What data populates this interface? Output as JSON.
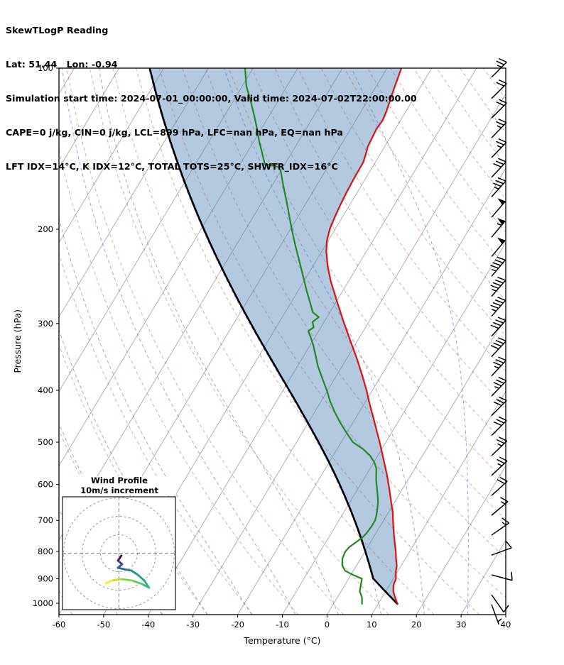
{
  "header": {
    "title": "SkewTLogP Reading",
    "location": "Lat: 51.44   Lon: -0.94",
    "times": "Simulation start time: 2024-07-01_00:00:00, Valid time: 2024-07-02T22:00:00.00",
    "indices1": "CAPE=0 j/kg, CIN=0 j/kg, LCL=899 hPa, LFC=nan hPa, EQ=nan hPa",
    "indices2": "LFT IDX=14°C, K IDX=12°C, TOTAL TOTS=25°C, SHWTR_IDX=16°C"
  },
  "chart_data": {
    "type": "skewt-logp",
    "title": "SkewTLogP Reading",
    "xlabel": "Temperature (°C)",
    "ylabel": "Pressure (hPa)",
    "xlim": [
      -60,
      40
    ],
    "p_lim": [
      100,
      1050
    ],
    "skew_slope": 0.6,
    "x_ticks": [
      -60,
      -50,
      -40,
      -30,
      -20,
      -10,
      0,
      10,
      20,
      30,
      40
    ],
    "y_ticks": [
      100,
      200,
      300,
      400,
      500,
      600,
      700,
      800,
      900,
      1000
    ],
    "background": {
      "isotherms": {
        "start": -160,
        "end": 40,
        "step": 10,
        "color": "#b0b0b0"
      },
      "dry_adiabats": {
        "theta_start_k": 233,
        "theta_end_k": 453,
        "step_k": 10,
        "color": "rgba(200,60,60,0.45)"
      },
      "moist_adiabats": {
        "t0_start": -60,
        "t0_end": 60,
        "step": 10,
        "color": "rgba(60,70,225,0.5)"
      }
    },
    "colors": {
      "temperature": "#e01010",
      "dewpoint": "#1f8b1f",
      "parcel": "#000000",
      "cin_shade": "rgba(74,127,181,0.42)",
      "barb": "#000000",
      "frame": "#000000"
    },
    "temperature_profile": [
      [
        1005,
        14.5
      ],
      [
        1000,
        14.2
      ],
      [
        975,
        12.9
      ],
      [
        950,
        11.7
      ],
      [
        925,
        10.9
      ],
      [
        900,
        10.6
      ],
      [
        875,
        9.7
      ],
      [
        850,
        9.0
      ],
      [
        825,
        7.9
      ],
      [
        800,
        6.9
      ],
      [
        775,
        5.7
      ],
      [
        750,
        4.5
      ],
      [
        725,
        3.3
      ],
      [
        700,
        2.1
      ],
      [
        675,
        0.9
      ],
      [
        650,
        -0.6
      ],
      [
        625,
        -2.1
      ],
      [
        600,
        -3.7
      ],
      [
        575,
        -5.4
      ],
      [
        550,
        -7.3
      ],
      [
        525,
        -9.3
      ],
      [
        500,
        -11.4
      ],
      [
        475,
        -13.7
      ],
      [
        450,
        -16.1
      ],
      [
        425,
        -18.7
      ],
      [
        400,
        -21.3
      ],
      [
        375,
        -24.3
      ],
      [
        350,
        -27.6
      ],
      [
        325,
        -31.3
      ],
      [
        300,
        -35.3
      ],
      [
        275,
        -39.5
      ],
      [
        250,
        -44.0
      ],
      [
        235,
        -46.6
      ],
      [
        220,
        -49.0
      ],
      [
        210,
        -50.3
      ],
      [
        200,
        -51.2
      ],
      [
        190,
        -51.7
      ],
      [
        180,
        -52.1
      ],
      [
        170,
        -52.4
      ],
      [
        160,
        -52.6
      ],
      [
        150,
        -52.7
      ],
      [
        145,
        -53.2
      ],
      [
        140,
        -53.8
      ],
      [
        130,
        -54.2
      ],
      [
        125,
        -54.0
      ],
      [
        120,
        -54.4
      ],
      [
        115,
        -55.0
      ],
      [
        110,
        -55.6
      ],
      [
        105,
        -56.2
      ],
      [
        100,
        -56.8
      ]
    ],
    "dewpoint_profile": [
      [
        1005,
        6.5
      ],
      [
        1000,
        6.3
      ],
      [
        975,
        5.5
      ],
      [
        950,
        4.2
      ],
      [
        925,
        3.6
      ],
      [
        900,
        3.0
      ],
      [
        885,
        0.5
      ],
      [
        870,
        -1.8
      ],
      [
        850,
        -3.2
      ],
      [
        825,
        -4.1
      ],
      [
        800,
        -4.4
      ],
      [
        785,
        -4.1
      ],
      [
        770,
        -3.3
      ],
      [
        755,
        -2.5
      ],
      [
        740,
        -2.1
      ],
      [
        720,
        -1.9
      ],
      [
        700,
        -1.9
      ],
      [
        685,
        -2.3
      ],
      [
        665,
        -3.0
      ],
      [
        645,
        -3.8
      ],
      [
        625,
        -4.9
      ],
      [
        605,
        -6.1
      ],
      [
        590,
        -7.0
      ],
      [
        575,
        -7.8
      ],
      [
        560,
        -8.6
      ],
      [
        545,
        -9.9
      ],
      [
        530,
        -11.7
      ],
      [
        515,
        -14.2
      ],
      [
        500,
        -17.4
      ],
      [
        480,
        -20.1
      ],
      [
        460,
        -22.8
      ],
      [
        440,
        -25.4
      ],
      [
        420,
        -27.9
      ],
      [
        400,
        -30.2
      ],
      [
        380,
        -32.8
      ],
      [
        360,
        -35.5
      ],
      [
        345,
        -37.3
      ],
      [
        330,
        -39.2
      ],
      [
        318,
        -41.0
      ],
      [
        310,
        -42.3
      ],
      [
        305,
        -41.6
      ],
      [
        298,
        -42.6
      ],
      [
        292,
        -41.8
      ],
      [
        286,
        -43.8
      ],
      [
        275,
        -45.6
      ],
      [
        260,
        -48.2
      ],
      [
        245,
        -50.8
      ],
      [
        230,
        -53.6
      ],
      [
        215,
        -56.6
      ],
      [
        200,
        -59.7
      ],
      [
        190,
        -61.8
      ],
      [
        180,
        -64.0
      ],
      [
        170,
        -66.4
      ],
      [
        162,
        -68.4
      ],
      [
        156,
        -69.9
      ],
      [
        153,
        -71.0
      ],
      [
        151,
        -74.5
      ],
      [
        148,
        -75.4
      ],
      [
        143,
        -76.9
      ],
      [
        137,
        -78.8
      ],
      [
        130,
        -80.9
      ],
      [
        122,
        -83.6
      ],
      [
        115,
        -86.2
      ],
      [
        108,
        -89.1
      ],
      [
        100,
        -91.8
      ]
    ],
    "parcel": {
      "surface_pressure": 1005,
      "surface_temp": 14.5,
      "lcl_pressure": 899
    },
    "wind_barbs": [
      [
        104,
        45,
        25
      ],
      [
        114,
        45,
        22
      ],
      [
        124,
        45,
        20
      ],
      [
        135,
        44,
        25
      ],
      [
        147,
        44,
        28
      ],
      [
        160,
        43,
        30
      ],
      [
        174,
        42,
        38
      ],
      [
        190,
        41,
        50
      ],
      [
        207,
        40,
        55
      ],
      [
        225,
        40,
        52
      ],
      [
        245,
        40,
        48
      ],
      [
        267,
        41,
        45
      ],
      [
        291,
        41,
        45
      ],
      [
        317,
        42,
        42
      ],
      [
        346,
        43,
        40
      ],
      [
        376,
        43,
        38
      ],
      [
        410,
        44,
        35
      ],
      [
        446,
        45,
        32
      ],
      [
        486,
        45,
        30
      ],
      [
        530,
        46,
        28
      ],
      [
        577,
        47,
        25
      ],
      [
        629,
        48,
        22
      ],
      [
        685,
        50,
        18
      ],
      [
        746,
        55,
        15
      ],
      [
        813,
        70,
        12
      ],
      [
        885,
        105,
        12
      ],
      [
        964,
        145,
        10
      ],
      [
        1005,
        160,
        7
      ]
    ],
    "hodograph": {
      "title_line1": "Wind Profile",
      "title_line2": "10m/s increment",
      "circle_radii_ms": [
        10,
        20,
        30
      ],
      "trace_uv_ms": [
        [
          1.3,
          -1.3
        ],
        [
          -0.6,
          -4.0
        ],
        [
          1.7,
          -6.0
        ],
        [
          -0.6,
          -7.9
        ],
        [
          2.9,
          -8.7
        ],
        [
          6.7,
          -9.4
        ],
        [
          10.2,
          -11.7
        ],
        [
          13.7,
          -14.8
        ],
        [
          16.3,
          -18.7
        ],
        [
          12.5,
          -16.7
        ],
        [
          7.1,
          -14.8
        ],
        [
          1.0,
          -14.0
        ],
        [
          -4.0,
          -14.8
        ],
        [
          -7.1,
          -16.3
        ]
      ],
      "trace_colors": [
        "#440154",
        "#46327e",
        "#3b528b",
        "#32648e",
        "#2c728e",
        "#21918c",
        "#1fa187",
        "#28ae80",
        "#3fbc73",
        "#5ec962",
        "#84d44b",
        "#bddf26",
        "#fde725"
      ]
    }
  }
}
